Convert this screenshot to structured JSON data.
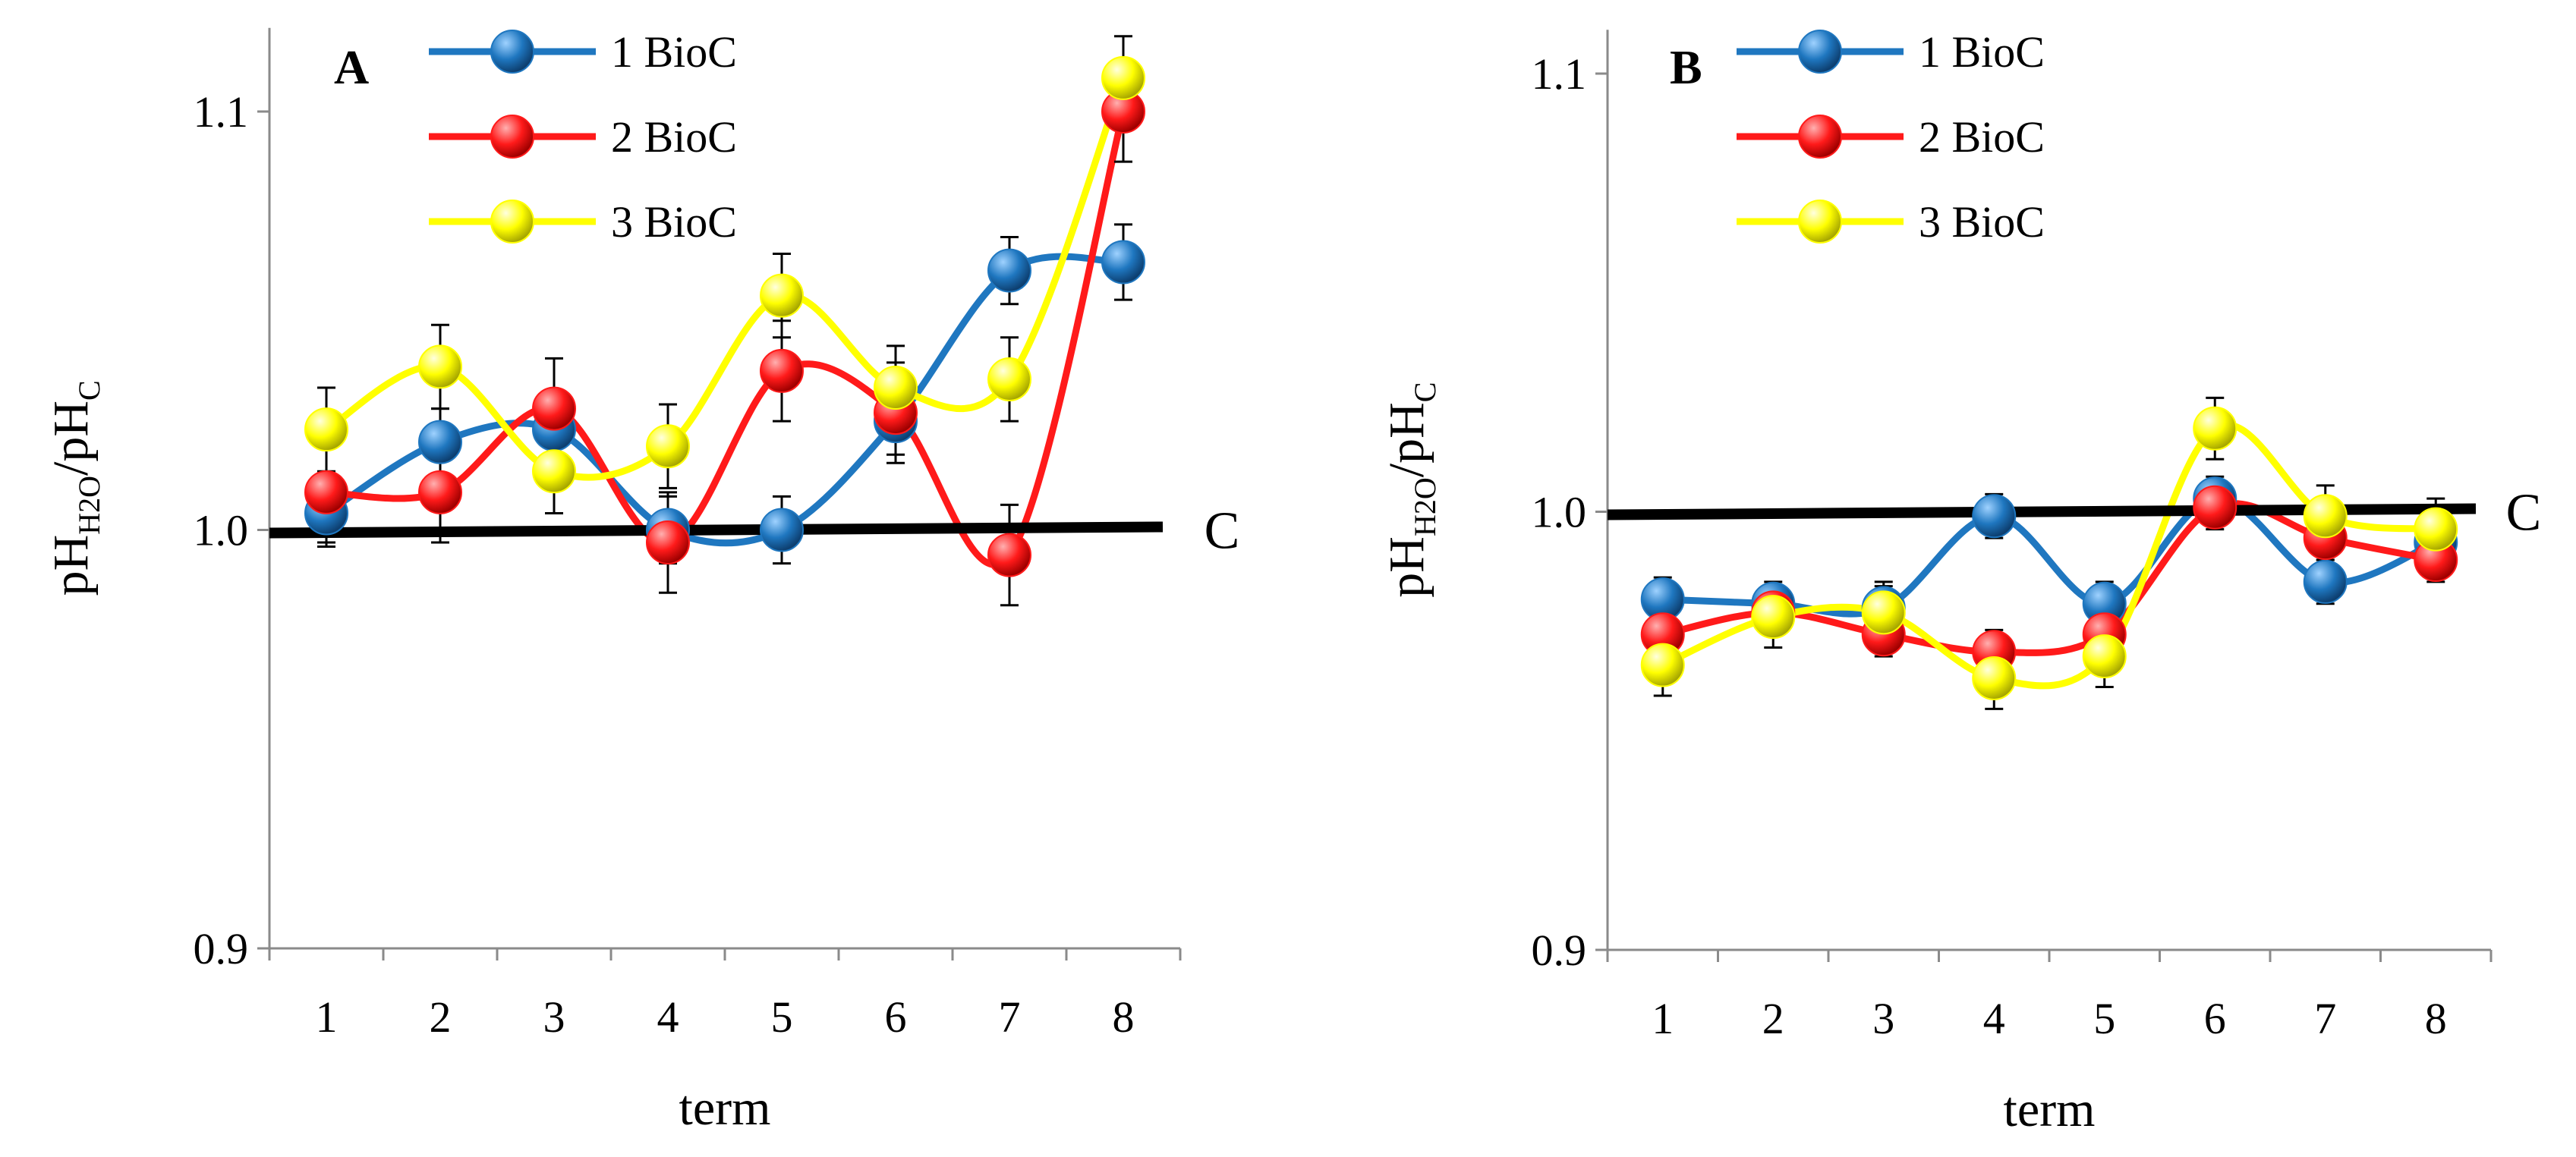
{
  "chart_data": [
    {
      "type": "line",
      "panel_label": "A",
      "xlabel": "term",
      "ylabel": {
        "base1": "pH",
        "sub1": "H2O",
        "slash": "/",
        "base2": "pH",
        "sub2": "C"
      },
      "categories": [
        "1",
        "2",
        "3",
        "4",
        "5",
        "6",
        "7",
        "8"
      ],
      "ylim": [
        0.9,
        1.12
      ],
      "yticks": [
        0.9,
        1.0,
        1.1
      ],
      "ytick_labels": [
        "0.9",
        "1.0",
        "1.1"
      ],
      "legend_position": "top",
      "series": [
        {
          "name": "1 BioC",
          "color": "#1f77c0",
          "values": [
            1.004,
            1.021,
            1.024,
            1.0,
            1.0,
            1.026,
            1.062,
            1.064
          ],
          "errors": [
            0.008,
            0.008,
            0.008,
            0.008,
            0.008,
            0.008,
            0.008,
            0.009
          ]
        },
        {
          "name": "2 BioC",
          "color": "#ff1a1a",
          "values": [
            1.009,
            1.009,
            1.029,
            0.997,
            1.038,
            1.028,
            0.994,
            1.1
          ],
          "errors": [
            0.012,
            0.012,
            0.012,
            0.012,
            0.012,
            0.012,
            0.012,
            0.012
          ]
        },
        {
          "name": "3 BioC",
          "color": "#ffff00",
          "values": [
            1.024,
            1.039,
            1.014,
            1.02,
            1.056,
            1.034,
            1.036,
            1.108
          ],
          "errors": [
            0.01,
            0.01,
            0.01,
            0.01,
            0.01,
            0.01,
            0.01,
            0.01
          ]
        }
      ],
      "control_line": {
        "label": "C",
        "value": 1.0
      }
    },
    {
      "type": "line",
      "panel_label": "B",
      "xlabel": "term",
      "ylabel": {
        "base1": "pH",
        "sub1": "H2O",
        "slash": "/",
        "base2": "pH",
        "sub2": "C"
      },
      "categories": [
        "1",
        "2",
        "3",
        "4",
        "5",
        "6",
        "7",
        "8"
      ],
      "ylim": [
        0.9,
        1.11
      ],
      "yticks": [
        0.9,
        1.0,
        1.1
      ],
      "ytick_labels": [
        "0.9",
        "1.0",
        "1.1"
      ],
      "legend_position": "top",
      "series": [
        {
          "name": "1 BioC",
          "color": "#1f77c0",
          "values": [
            0.98,
            0.979,
            0.978,
            0.999,
            0.979,
            1.003,
            0.984,
            0.993
          ],
          "errors": [
            0.005,
            0.005,
            0.005,
            0.005,
            0.005,
            0.005,
            0.005,
            0.005
          ]
        },
        {
          "name": "2 BioC",
          "color": "#ff1a1a",
          "values": [
            0.972,
            0.977,
            0.972,
            0.968,
            0.972,
            1.001,
            0.994,
            0.989
          ],
          "errors": [
            0.005,
            0.005,
            0.005,
            0.005,
            0.005,
            0.005,
            0.005,
            0.005
          ]
        },
        {
          "name": "3 BioC",
          "color": "#ffff00",
          "values": [
            0.965,
            0.976,
            0.977,
            0.962,
            0.967,
            1.019,
            0.999,
            0.996
          ],
          "errors": [
            0.007,
            0.007,
            0.007,
            0.007,
            0.007,
            0.007,
            0.007,
            0.007
          ]
        }
      ],
      "control_line": {
        "label": "C",
        "value": 1.0
      }
    }
  ]
}
